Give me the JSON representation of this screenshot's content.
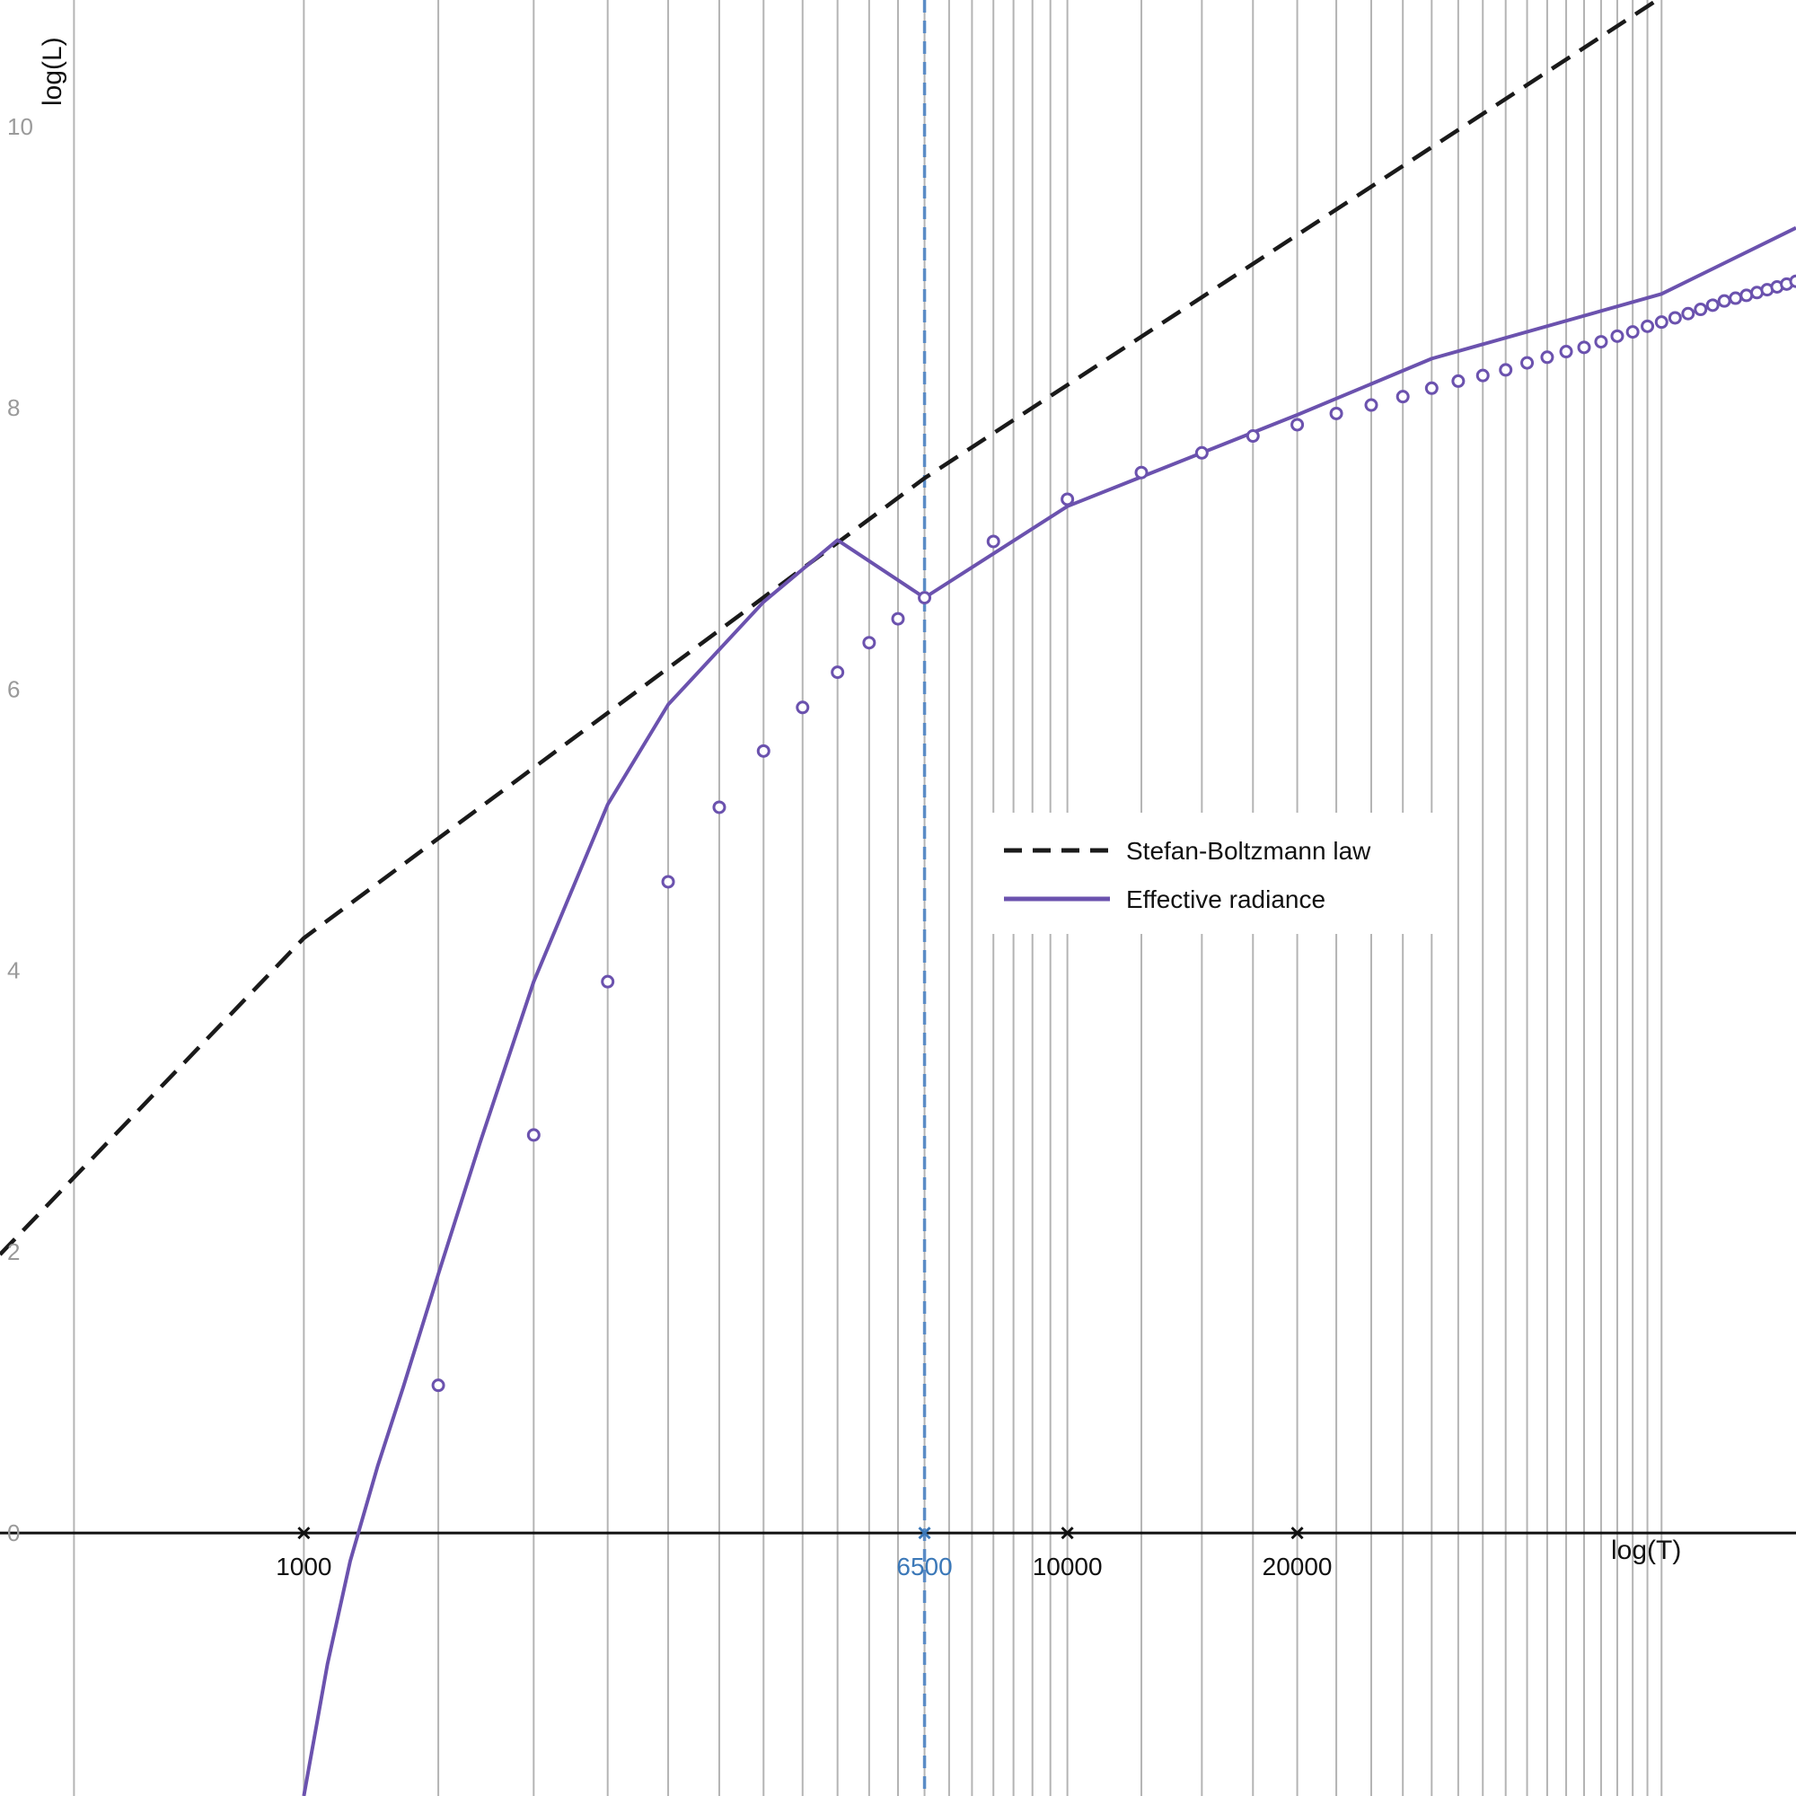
{
  "chart_data": {
    "type": "line",
    "xlabel": "log(T)",
    "ylabel": "log(L)",
    "x_scale": "log",
    "xlim": [
      400,
      90000
    ],
    "ylim": [
      -1.87,
      10.9
    ],
    "grid": {
      "vertical_lines_at_T": [
        500,
        1000,
        1500,
        2000,
        2500,
        3000,
        3500,
        4000,
        4500,
        5000,
        5500,
        6000,
        6500,
        7000,
        7500,
        8000,
        8500,
        9000,
        9500,
        10000,
        12500,
        15000,
        17500,
        20000,
        22500,
        25000,
        27500,
        30000,
        32500,
        35000,
        37500,
        40000,
        42500,
        45000,
        47500,
        50000,
        52500,
        55000,
        57500,
        60000
      ]
    },
    "x_ticks": [
      {
        "label": "1000",
        "value": 1000,
        "color": "#111111"
      },
      {
        "label": "6500",
        "value": 6500,
        "color": "#3b78b8"
      },
      {
        "label": "10000",
        "value": 10000,
        "color": "#111111"
      },
      {
        "label": "20000",
        "value": 20000,
        "color": "#111111"
      }
    ],
    "y_ticks": [
      {
        "label": "0",
        "value": 0
      },
      {
        "label": "2",
        "value": 2
      },
      {
        "label": "4",
        "value": 4
      },
      {
        "label": "6",
        "value": 6
      },
      {
        "label": "8",
        "value": 8
      },
      {
        "label": "10",
        "value": 10
      }
    ],
    "reference_line": {
      "T": 6500,
      "color": "#5b8cc6",
      "style": "dashed"
    },
    "legend": {
      "placement": "center-right"
    },
    "series": [
      {
        "name": "Stefan-Boltzmann law",
        "style": "dashed",
        "color": "#1a1a1a",
        "points": [
          [
            400,
            1.98
          ],
          [
            1000,
            4.23
          ],
          [
            6500,
            7.5
          ],
          [
            60000,
            10.92
          ]
        ]
      },
      {
        "name": "Effective radiance",
        "style": "solid",
        "color": "#6b52ae",
        "markers": "hollow-circle",
        "curve_points": [
          [
            1000,
            -1.87
          ],
          [
            1074,
            -0.93
          ],
          [
            1150,
            -0.2
          ],
          [
            1250,
            0.48
          ],
          [
            1350,
            1.04
          ],
          [
            1500,
            1.84
          ],
          [
            1700,
            2.77
          ],
          [
            2000,
            3.92
          ],
          [
            2500,
            5.18
          ],
          [
            3000,
            5.89
          ],
          [
            4000,
            6.62
          ],
          [
            5000,
            7.06
          ],
          [
            6500,
            6.65
          ],
          [
            10000,
            7.3
          ],
          [
            20000,
            7.95
          ],
          [
            30000,
            8.35
          ],
          [
            60000,
            8.81
          ],
          [
            90000,
            9.28
          ]
        ],
        "marker_points": [
          [
            1500,
            1.05
          ],
          [
            2000,
            2.83
          ],
          [
            2500,
            3.92
          ],
          [
            3000,
            4.63
          ],
          [
            3500,
            5.16
          ],
          [
            4000,
            5.56
          ],
          [
            4500,
            5.87
          ],
          [
            5000,
            6.12
          ],
          [
            5500,
            6.33
          ],
          [
            6000,
            6.5
          ],
          [
            6500,
            6.65
          ],
          [
            8000,
            7.05
          ],
          [
            10000,
            7.35
          ],
          [
            12500,
            7.54
          ],
          [
            15000,
            7.68
          ],
          [
            17500,
            7.8
          ],
          [
            20000,
            7.88
          ],
          [
            22500,
            7.96
          ],
          [
            25000,
            8.02
          ],
          [
            27500,
            8.08
          ],
          [
            30000,
            8.14
          ],
          [
            32500,
            8.19
          ],
          [
            35000,
            8.23
          ],
          [
            37500,
            8.27
          ],
          [
            40000,
            8.32
          ],
          [
            42500,
            8.36
          ],
          [
            45000,
            8.4
          ],
          [
            47500,
            8.43
          ],
          [
            50000,
            8.47
          ],
          [
            52500,
            8.51
          ],
          [
            55000,
            8.54
          ],
          [
            57500,
            8.58
          ],
          [
            60000,
            8.61
          ],
          [
            62500,
            8.64
          ],
          [
            65000,
            8.67
          ],
          [
            67500,
            8.7
          ],
          [
            70000,
            8.73
          ],
          [
            72500,
            8.76
          ],
          [
            75000,
            8.78
          ],
          [
            77500,
            8.8
          ],
          [
            80000,
            8.82
          ],
          [
            82500,
            8.84
          ],
          [
            85000,
            8.86
          ],
          [
            87500,
            8.88
          ],
          [
            90000,
            8.9
          ]
        ]
      }
    ]
  }
}
